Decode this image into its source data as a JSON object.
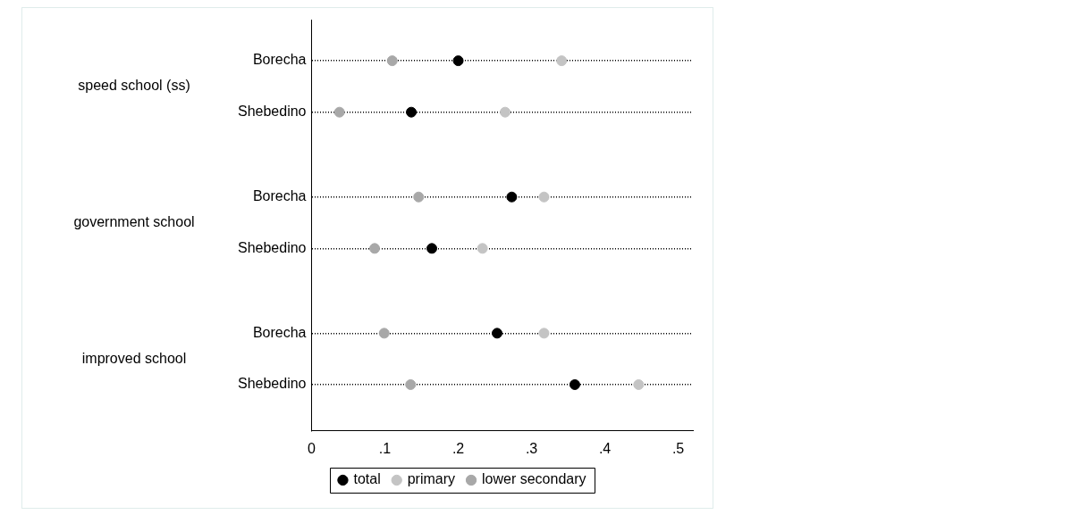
{
  "chart_data": {
    "type": "scatter",
    "orientation": "horizontal",
    "categories": [
      "Borecha",
      "Shebedino",
      "Borecha",
      "Shebedino",
      "Borecha",
      "Shebedino"
    ],
    "annotations": [
      "speed school (ss)",
      "government school",
      "improved school"
    ],
    "series": [
      {
        "name": "total",
        "color": "#000000",
        "values": [
          0.2,
          0.136,
          0.273,
          0.164,
          0.253,
          0.359
        ]
      },
      {
        "name": "primary",
        "color": "#c4c4c4",
        "values": [
          0.341,
          0.264,
          0.317,
          0.233,
          0.317,
          0.446
        ]
      },
      {
        "name": "lower secondary",
        "color": "#a8a8a8",
        "values": [
          0.11,
          0.038,
          0.146,
          0.086,
          0.099,
          0.135
        ]
      }
    ],
    "xlim": [
      0,
      0.52
    ],
    "xticks": [
      {
        "value": 0,
        "label": "0"
      },
      {
        "value": 0.1,
        "label": ".1"
      },
      {
        "value": 0.2,
        "label": ".2"
      },
      {
        "value": 0.3,
        "label": ".3"
      },
      {
        "value": 0.4,
        "label": ".4"
      },
      {
        "value": 0.5,
        "label": ".5"
      }
    ],
    "grid": "y",
    "line_style": "dotted",
    "marker": "circle",
    "legend": "bottom"
  }
}
